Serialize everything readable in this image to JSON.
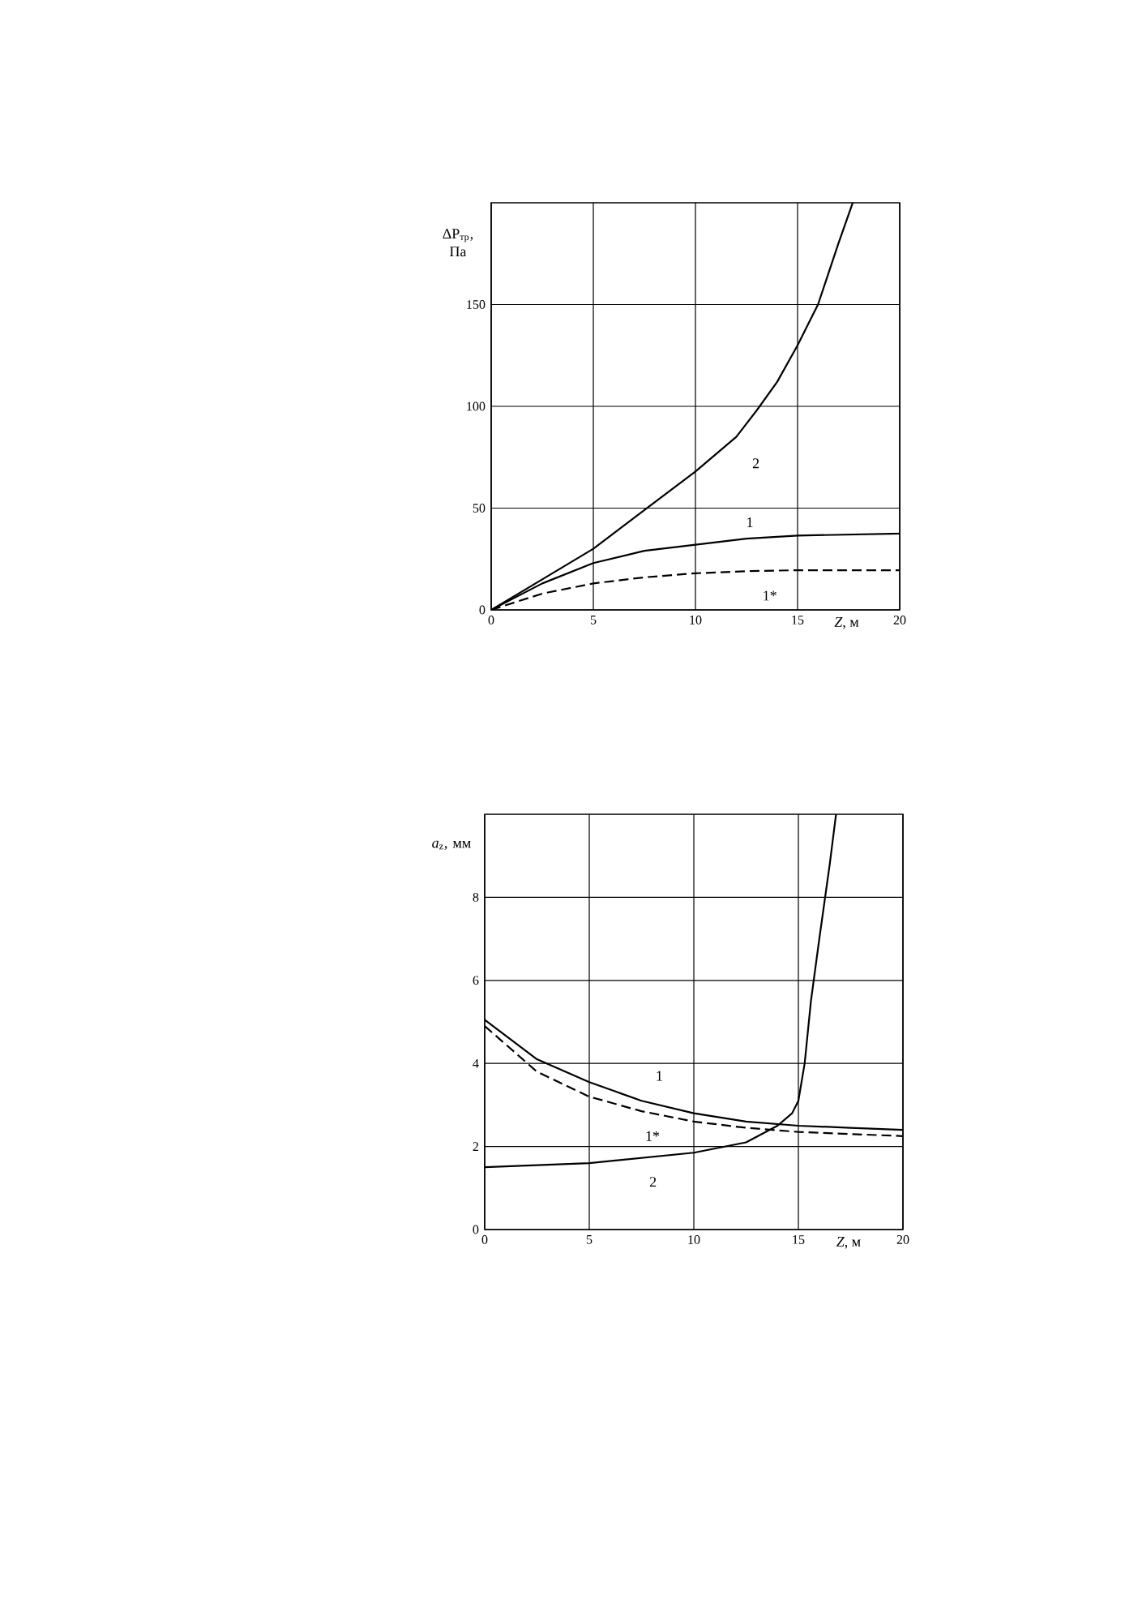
{
  "chart_data": [
    {
      "type": "line",
      "xlabel": "*Z*, м",
      "ylabel": "ΔP$_{тр}$, Па",
      "xlim": [
        0,
        20
      ],
      "ylim": [
        0,
        200
      ],
      "xticks": [
        0,
        5,
        10,
        15,
        20
      ],
      "yticks": [
        0,
        50,
        100,
        150
      ],
      "grid": true,
      "marker": "none",
      "series": [
        {
          "color": "#000000",
          "line_style": "solid",
          "x": [
            0,
            2.5,
            5,
            7.5,
            10,
            12,
            13,
            14,
            15,
            15.5,
            16,
            16.5,
            17,
            17.7
          ],
          "values": [
            0,
            15,
            30,
            49,
            68,
            85,
            98,
            112,
            130,
            140,
            150,
            165,
            180,
            200
          ]
        },
        {
          "color": "#000000",
          "line_style": "solid",
          "x": [
            0,
            2.5,
            5,
            7.5,
            10,
            12.5,
            15,
            20
          ],
          "values": [
            0,
            13,
            23,
            29,
            32,
            35,
            36.5,
            37.5
          ]
        },
        {
          "color": "#000000",
          "line_style": "dashed",
          "x": [
            0,
            2.5,
            5,
            7.5,
            10,
            12.5,
            15,
            20
          ],
          "values": [
            0,
            8,
            13,
            16,
            18,
            19,
            19.5,
            19.5
          ]
        }
      ],
      "annotations": [
        "2",
        "1",
        "1*"
      ]
    },
    {
      "type": "line",
      "xlabel": "*Z*, м",
      "ylabel": "*a*$_{z}$, мм",
      "xlim": [
        0,
        20
      ],
      "ylim": [
        0,
        10
      ],
      "xticks": [
        0,
        5,
        10,
        15,
        20
      ],
      "yticks": [
        0,
        2,
        4,
        6,
        8
      ],
      "grid": true,
      "marker": "none",
      "series": [
        {
          "color": "#000000",
          "line_style": "solid",
          "x": [
            0,
            2.5,
            5,
            7.5,
            10,
            12.5,
            15,
            17.5,
            20
          ],
          "values": [
            5.05,
            4.1,
            3.55,
            3.1,
            2.8,
            2.6,
            2.5,
            2.45,
            2.4
          ]
        },
        {
          "color": "#000000",
          "line_style": "dashed",
          "x": [
            0,
            2.5,
            5,
            7.5,
            10,
            12.5,
            15,
            20
          ],
          "values": [
            4.9,
            3.8,
            3.2,
            2.85,
            2.6,
            2.45,
            2.35,
            2.25
          ]
        },
        {
          "color": "#000000",
          "line_style": "solid",
          "x": [
            0,
            5,
            10,
            12.5,
            14,
            14.7,
            15,
            15.3,
            15.6,
            16,
            16.5,
            16.8
          ],
          "values": [
            1.5,
            1.6,
            1.85,
            2.1,
            2.5,
            2.8,
            3.1,
            4,
            5.5,
            7,
            8.8,
            10
          ]
        }
      ],
      "annotations": [
        "1",
        "1*",
        "2"
      ]
    }
  ]
}
